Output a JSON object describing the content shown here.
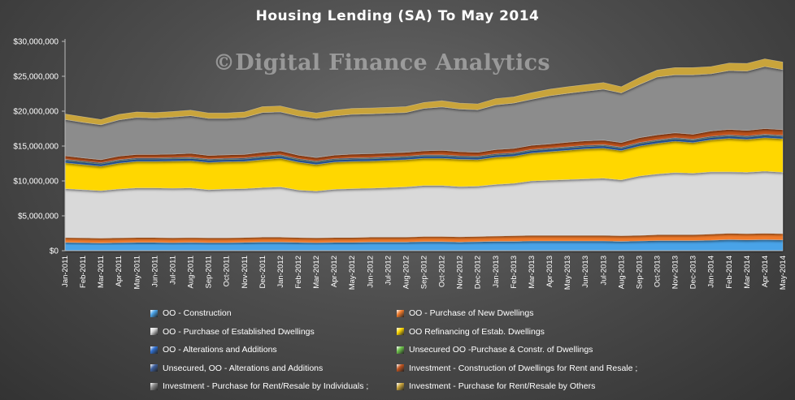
{
  "chart_data": {
    "type": "area",
    "stacked": true,
    "title": "Housing  Lending  (SA) To May 2014",
    "watermark": "©Digital Finance Analytics",
    "ylim": [
      0,
      30000000
    ],
    "y_ticks": [
      "$0",
      "$5,000,000",
      "$10,000,000",
      "$15,000,000",
      "$20,000,000",
      "$25,000,000",
      "$30,000,000"
    ],
    "categories": [
      "Jan-2011",
      "Feb-2011",
      "Mar-2011",
      "Apr-2011",
      "May-2011",
      "Jun-2011",
      "Jul-2011",
      "Aug-2011",
      "Sep-2011",
      "Oct-2011",
      "Nov-2011",
      "Dec-2011",
      "Jan-2012",
      "Feb-2012",
      "Mar-2012",
      "Apr-2012",
      "May-2012",
      "Jun-2012",
      "Jul-2012",
      "Aug-2012",
      "Sep-2012",
      "Oct-2012",
      "Nov-2012",
      "Dec-2012",
      "Jan-2013",
      "Feb-2013",
      "Mar-2013",
      "Apr-2013",
      "May-2013",
      "Jun-2013",
      "Jul-2013",
      "Aug-2013",
      "Sep-2013",
      "Oct-2013",
      "Nov-2013",
      "Dec-2013",
      "Jan-2014",
      "Feb-2014",
      "Mar-2014",
      "Apr-2014",
      "May-2014"
    ],
    "grid": false,
    "legend_position": "bottom",
    "series": [
      {
        "name": "OO - Construction",
        "color": "#4aa3e8",
        "values": [
          1200000,
          1150000,
          1100000,
          1150000,
          1200000,
          1200000,
          1150000,
          1200000,
          1150000,
          1150000,
          1200000,
          1250000,
          1250000,
          1200000,
          1150000,
          1200000,
          1200000,
          1250000,
          1250000,
          1250000,
          1300000,
          1300000,
          1250000,
          1300000,
          1350000,
          1350000,
          1400000,
          1400000,
          1400000,
          1400000,
          1400000,
          1350000,
          1400000,
          1450000,
          1450000,
          1450000,
          1500000,
          1600000,
          1550000,
          1600000,
          1550000
        ]
      },
      {
        "name": "OO - Purchase of New Dwellings",
        "color": "#f07a2a",
        "values": [
          700000,
          700000,
          700000,
          700000,
          700000,
          700000,
          700000,
          700000,
          700000,
          700000,
          700000,
          700000,
          700000,
          700000,
          700000,
          700000,
          700000,
          700000,
          700000,
          700000,
          750000,
          750000,
          750000,
          750000,
          750000,
          800000,
          800000,
          800000,
          800000,
          800000,
          800000,
          800000,
          800000,
          850000,
          850000,
          850000,
          900000,
          900000,
          900000,
          900000,
          900000
        ]
      },
      {
        "name": "OO - Purchase of Established Dwellings",
        "color": "#d9d9d9",
        "values": [
          7000000,
          6900000,
          6800000,
          7000000,
          7100000,
          7100000,
          7100000,
          7100000,
          6900000,
          7000000,
          7000000,
          7100000,
          7200000,
          6800000,
          6700000,
          6900000,
          7000000,
          7000000,
          7100000,
          7200000,
          7300000,
          7300000,
          7200000,
          7200000,
          7400000,
          7500000,
          7800000,
          7900000,
          8000000,
          8100000,
          8200000,
          8000000,
          8500000,
          8700000,
          8900000,
          8800000,
          8900000,
          8800000,
          8800000,
          8900000,
          8800000
        ]
      },
      {
        "name": "OO Refinancing of Estab. Dwellings",
        "color": "#ffd700",
        "values": [
          3700000,
          3600000,
          3500000,
          3700000,
          3800000,
          3800000,
          3900000,
          3900000,
          3900000,
          3900000,
          3900000,
          4000000,
          4100000,
          4000000,
          3800000,
          3900000,
          3900000,
          3900000,
          3900000,
          3900000,
          3900000,
          3900000,
          3900000,
          3800000,
          3900000,
          3900000,
          4000000,
          4100000,
          4200000,
          4300000,
          4300000,
          4200000,
          4300000,
          4400000,
          4500000,
          4400000,
          4600000,
          4800000,
          4700000,
          4800000,
          4800000
        ]
      },
      {
        "name": "OO - Alterations and Additions",
        "color": "#2f6fd0",
        "values": [
          300000,
          300000,
          300000,
          300000,
          300000,
          300000,
          300000,
          300000,
          300000,
          300000,
          300000,
          300000,
          300000,
          300000,
          300000,
          300000,
          300000,
          300000,
          300000,
          300000,
          300000,
          300000,
          300000,
          300000,
          300000,
          300000,
          300000,
          300000,
          300000,
          300000,
          300000,
          300000,
          300000,
          300000,
          300000,
          300000,
          300000,
          300000,
          300000,
          300000,
          300000
        ]
      },
      {
        "name": "Unsecured OO -Purchase & Constr. of Dwellings",
        "color": "#6cc14a",
        "values": [
          80000,
          80000,
          80000,
          80000,
          80000,
          80000,
          80000,
          80000,
          80000,
          80000,
          80000,
          80000,
          80000,
          80000,
          80000,
          80000,
          80000,
          80000,
          80000,
          80000,
          80000,
          80000,
          80000,
          80000,
          80000,
          80000,
          80000,
          80000,
          80000,
          80000,
          80000,
          80000,
          80000,
          80000,
          80000,
          80000,
          80000,
          80000,
          80000,
          80000,
          80000
        ]
      },
      {
        "name": "Unsecured, OO - Alterations and Additions",
        "color": "#3c5e9c",
        "values": [
          120000,
          120000,
          120000,
          120000,
          120000,
          120000,
          120000,
          120000,
          120000,
          120000,
          120000,
          120000,
          120000,
          120000,
          120000,
          120000,
          120000,
          120000,
          120000,
          120000,
          120000,
          120000,
          120000,
          120000,
          120000,
          120000,
          120000,
          120000,
          120000,
          120000,
          120000,
          120000,
          120000,
          120000,
          120000,
          120000,
          120000,
          120000,
          120000,
          120000,
          120000
        ]
      },
      {
        "name": "Investment - Construction of Dwellings for Rent and Resale ;",
        "color": "#c0531e",
        "values": [
          500000,
          450000,
          450000,
          500000,
          500000,
          500000,
          500000,
          550000,
          500000,
          500000,
          500000,
          550000,
          550000,
          500000,
          500000,
          500000,
          550000,
          550000,
          550000,
          550000,
          550000,
          650000,
          600000,
          550000,
          600000,
          600000,
          600000,
          600000,
          650000,
          650000,
          650000,
          650000,
          700000,
          700000,
          700000,
          700000,
          750000,
          800000,
          800000,
          800000,
          800000
        ]
      },
      {
        "name": "Investment - Purchase for Rent/Resale by Individuals ;",
        "color": "#8c8c8c",
        "values": [
          5200000,
          5100000,
          5000000,
          5200000,
          5300000,
          5200000,
          5300000,
          5400000,
          5300000,
          5200000,
          5300000,
          5700000,
          5600000,
          5600000,
          5600000,
          5600000,
          5700000,
          5700000,
          5700000,
          5700000,
          6100000,
          6200000,
          6100000,
          6100000,
          6400000,
          6500000,
          6600000,
          6900000,
          7000000,
          7100000,
          7300000,
          7100000,
          7600000,
          8300000,
          8300000,
          8500000,
          8200000,
          8400000,
          8500000,
          8900000,
          8600000
        ]
      },
      {
        "name": "Investment - Purchase for Rent/Resale by Others",
        "color": "#c9a43a",
        "values": [
          800000,
          800000,
          750000,
          800000,
          800000,
          800000,
          800000,
          800000,
          800000,
          800000,
          800000,
          850000,
          850000,
          850000,
          800000,
          850000,
          850000,
          850000,
          850000,
          850000,
          850000,
          900000,
          850000,
          850000,
          900000,
          900000,
          950000,
          950000,
          950000,
          950000,
          950000,
          900000,
          1000000,
          1000000,
          1050000,
          1050000,
          1050000,
          1100000,
          1100000,
          1100000,
          1100000
        ]
      }
    ]
  }
}
